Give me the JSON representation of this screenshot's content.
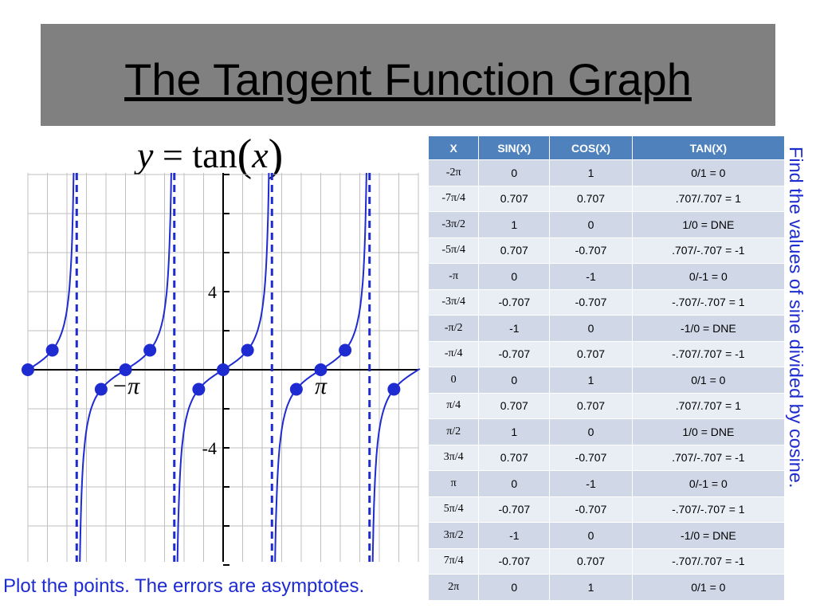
{
  "slide": {
    "title": "The Tangent Function Graph",
    "equation": {
      "lhs": "y",
      "equals": "=",
      "func": "tan",
      "open": "(",
      "arg": "x",
      "close": ")"
    },
    "caption": "Plot the points. The errors are asymptotes.",
    "side_note": "Find the values of sine divided by cosine.",
    "colors": {
      "title_bg": "#808080",
      "accent_text": "#1e2bd0",
      "curve": "#1e2bd0",
      "header_bg": "#4f81bd",
      "row_a": "#d0d8e8",
      "row_b": "#e9edf4"
    }
  },
  "table": {
    "headers": [
      "X",
      "SIN(X)",
      "COS(X)",
      "TAN(X)"
    ],
    "rows": [
      [
        "-2π",
        "0",
        "1",
        "0/1 = 0"
      ],
      [
        "-7π/4",
        "0.707",
        "0.707",
        ".707/.707 = 1"
      ],
      [
        "-3π/2",
        "1",
        "0",
        "1/0 = DNE"
      ],
      [
        "-5π/4",
        "0.707",
        "-0.707",
        ".707/-.707 = -1"
      ],
      [
        "-π",
        "0",
        "-1",
        "0/-1 = 0"
      ],
      [
        "-3π/4",
        "-0.707",
        "-0.707",
        "-.707/-.707 = 1"
      ],
      [
        "-π/2",
        "-1",
        "0",
        "-1/0 = DNE"
      ],
      [
        "-π/4",
        "-0.707",
        "0.707",
        "-.707/.707 = -1"
      ],
      [
        "0",
        "0",
        "1",
        "0/1 = 0"
      ],
      [
        "π/4",
        "0.707",
        "0.707",
        ".707/.707 = 1"
      ],
      [
        "π/2",
        "1",
        "0",
        "1/0 = DNE"
      ],
      [
        "3π/4",
        "0.707",
        "-0.707",
        ".707/-.707 = -1"
      ],
      [
        "π",
        "0",
        "-1",
        "0/-1 = 0"
      ],
      [
        "5π/4",
        "-0.707",
        "-0.707",
        "-.707/-.707 = 1"
      ],
      [
        "3π/2",
        "-1",
        "0",
        "-1/0 = DNE"
      ],
      [
        "7π/4",
        "-0.707",
        "0.707",
        "-.707/.707 = -1"
      ],
      [
        "2π",
        "0",
        "1",
        "0/1 = 0"
      ]
    ]
  },
  "chart_data": {
    "type": "line",
    "function": "tan",
    "xlim": [
      -5.3,
      5.6
    ],
    "ylim": [
      -5,
      5
    ],
    "grid": true,
    "y_tick_labels": [
      {
        "value": 4,
        "label": "4"
      },
      {
        "value": -4,
        "label": "-4"
      }
    ],
    "x_tick_labels": [
      {
        "value": -3.14159,
        "label": "−π"
      },
      {
        "value": 3.14159,
        "label": "π"
      }
    ],
    "asymptotes_x": [
      -4.712,
      -1.5708,
      1.5708,
      4.712
    ],
    "points": [
      {
        "x": -5.4978,
        "y": 1
      },
      {
        "x": -3.927,
        "y": -1
      },
      {
        "x": -3.1416,
        "y": 0
      },
      {
        "x": -2.3562,
        "y": 1
      },
      {
        "x": -0.7854,
        "y": -1
      },
      {
        "x": 0,
        "y": 0
      },
      {
        "x": 0.7854,
        "y": 1
      },
      {
        "x": 2.3562,
        "y": -1
      },
      {
        "x": 3.1416,
        "y": 0
      },
      {
        "x": 3.927,
        "y": 1
      },
      {
        "x": 5.4978,
        "y": -1
      },
      {
        "x": -6.2832,
        "y": 0
      }
    ]
  }
}
